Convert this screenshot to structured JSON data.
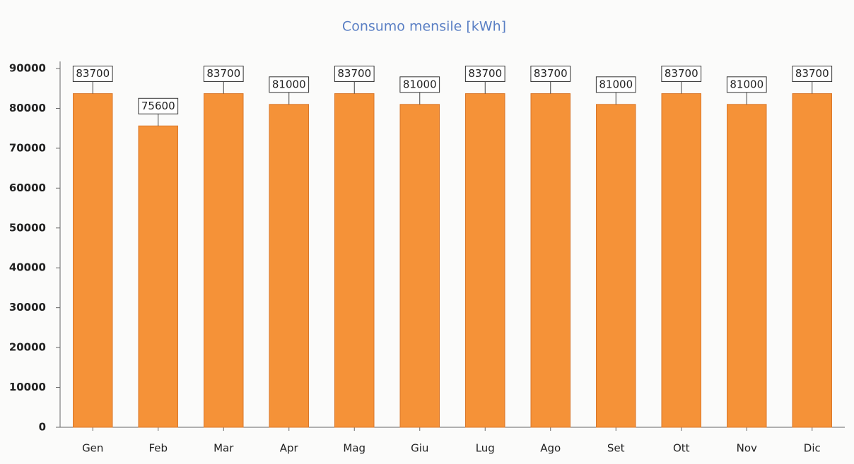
{
  "chart_data": {
    "type": "bar",
    "title": "Consumo mensile [kWh]",
    "categories": [
      "Gen",
      "Feb",
      "Mar",
      "Apr",
      "Mag",
      "Giu",
      "Lug",
      "Ago",
      "Set",
      "Ott",
      "Nov",
      "Dic"
    ],
    "values": [
      83700,
      75600,
      83700,
      81000,
      83700,
      81000,
      83700,
      83700,
      81000,
      83700,
      81000,
      83700
    ],
    "color": "#f59238",
    "ylim": [
      0,
      90000
    ],
    "yticks": [
      0,
      10000,
      20000,
      30000,
      40000,
      50000,
      60000,
      70000,
      80000,
      90000
    ],
    "grid": false
  }
}
